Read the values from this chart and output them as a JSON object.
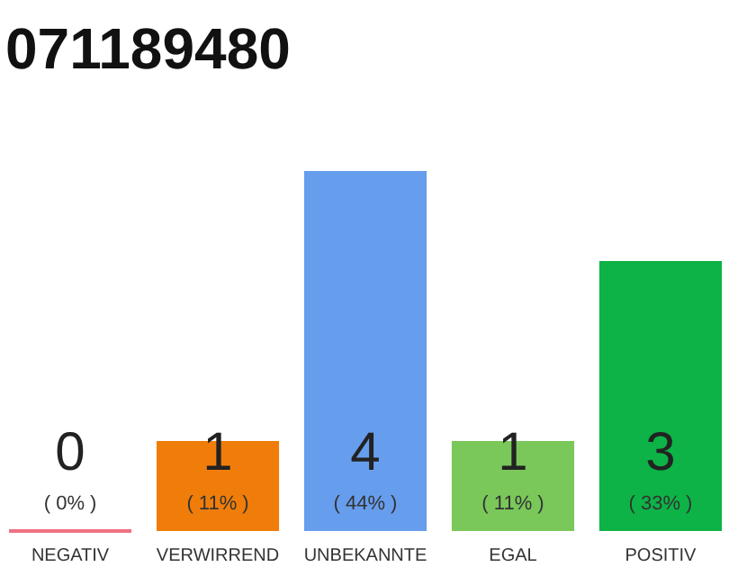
{
  "chart_data": {
    "type": "bar",
    "title": "071189480",
    "categories": [
      "NEGATIV",
      "VERWIRREND",
      "UNBEKANNTE",
      "EGAL",
      "POSITIV"
    ],
    "values": [
      0,
      1,
      4,
      1,
      3
    ],
    "colors": [
      "#e8344e",
      "#f07d0a",
      "#679ded",
      "#7ac75a",
      "#0db346"
    ],
    "data_labels": true,
    "annotations": [
      "( 0% )",
      "( 11% )",
      "( 44% )",
      "( 11% )",
      "( 33% )"
    ],
    "grid": false
  }
}
